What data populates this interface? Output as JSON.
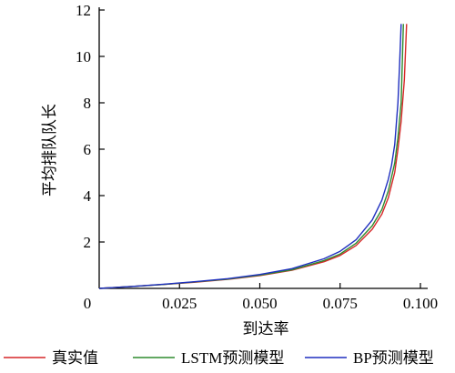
{
  "chart_data": {
    "type": "line",
    "xlabel": "到达率",
    "ylabel": "平均排队队长",
    "xlim": [
      0,
      0.1
    ],
    "ylim": [
      0,
      12
    ],
    "x_ticks": [
      "0.025",
      "0.050",
      "0.075",
      "0.100"
    ],
    "x_tick_values": [
      0.025,
      0.05,
      0.075,
      0.1
    ],
    "y_ticks": [
      "2",
      "4",
      "6",
      "8",
      "10",
      "12"
    ],
    "y_tick_values": [
      2,
      4,
      6,
      8,
      10,
      12
    ],
    "origin_label": "0",
    "grid": false,
    "legend_position": "bottom",
    "series": [
      {
        "name": "真实值",
        "color": "#d62728",
        "points": [
          [
            0,
            0
          ],
          [
            0.01,
            0.08
          ],
          [
            0.02,
            0.17
          ],
          [
            0.03,
            0.27
          ],
          [
            0.04,
            0.39
          ],
          [
            0.05,
            0.55
          ],
          [
            0.06,
            0.78
          ],
          [
            0.07,
            1.15
          ],
          [
            0.075,
            1.42
          ],
          [
            0.08,
            1.85
          ],
          [
            0.085,
            2.55
          ],
          [
            0.088,
            3.2
          ],
          [
            0.09,
            3.9
          ],
          [
            0.092,
            5.0
          ],
          [
            0.093,
            6.0
          ],
          [
            0.094,
            7.2
          ],
          [
            0.095,
            9.0
          ],
          [
            0.0957,
            11.4
          ]
        ]
      },
      {
        "name": "LSTM预测模型",
        "color": "#2e8b2e",
        "points": [
          [
            0,
            0
          ],
          [
            0.01,
            0.08
          ],
          [
            0.02,
            0.17
          ],
          [
            0.03,
            0.28
          ],
          [
            0.04,
            0.4
          ],
          [
            0.05,
            0.57
          ],
          [
            0.06,
            0.8
          ],
          [
            0.07,
            1.2
          ],
          [
            0.075,
            1.48
          ],
          [
            0.08,
            1.95
          ],
          [
            0.085,
            2.7
          ],
          [
            0.088,
            3.4
          ],
          [
            0.09,
            4.2
          ],
          [
            0.092,
            5.4
          ],
          [
            0.093,
            6.5
          ],
          [
            0.094,
            8.0
          ],
          [
            0.0947,
            11.4
          ]
        ]
      },
      {
        "name": "BP预测模型",
        "color": "#1f2fbf",
        "points": [
          [
            0,
            0
          ],
          [
            0.01,
            0.08
          ],
          [
            0.02,
            0.18
          ],
          [
            0.03,
            0.29
          ],
          [
            0.04,
            0.42
          ],
          [
            0.05,
            0.6
          ],
          [
            0.06,
            0.85
          ],
          [
            0.07,
            1.28
          ],
          [
            0.075,
            1.6
          ],
          [
            0.08,
            2.1
          ],
          [
            0.085,
            2.95
          ],
          [
            0.088,
            3.8
          ],
          [
            0.09,
            4.7
          ],
          [
            0.091,
            5.3
          ],
          [
            0.092,
            6.2
          ],
          [
            0.093,
            8.0
          ],
          [
            0.0935,
            9.6
          ],
          [
            0.094,
            11.4
          ]
        ]
      }
    ]
  }
}
